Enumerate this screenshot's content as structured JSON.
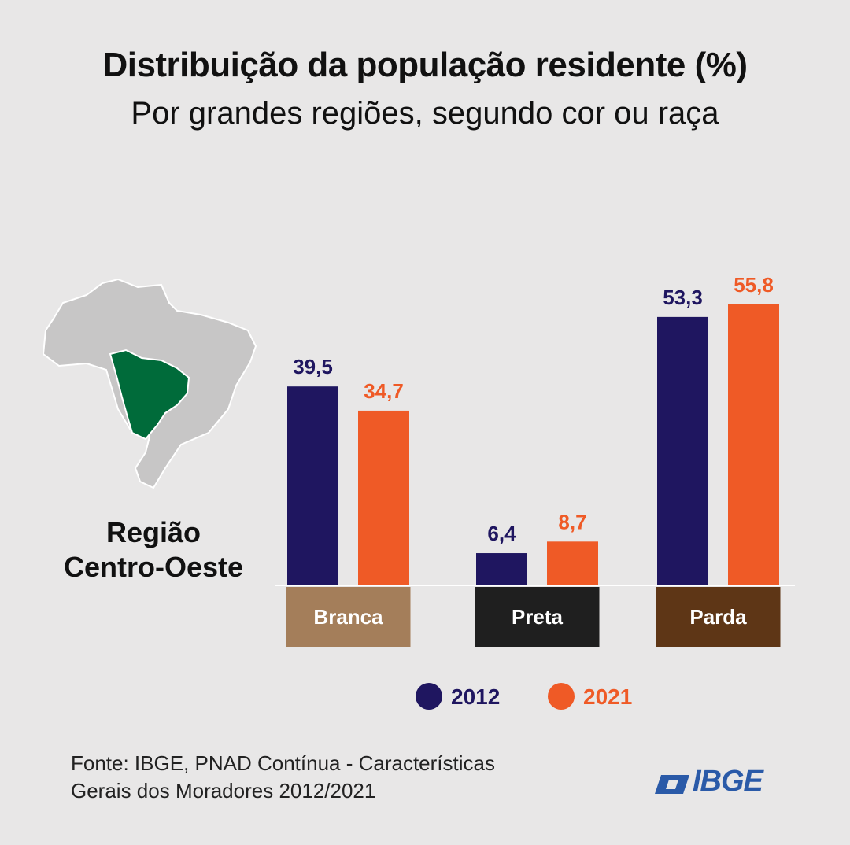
{
  "title": "Distribuição da população residente (%)",
  "subtitle": "Por grandes regiões, segundo cor ou raça",
  "region": {
    "line1": "Região",
    "line2": "Centro-Oeste",
    "highlight_color": "#006b3a",
    "map_color": "#c7c6c6"
  },
  "source": {
    "line1": "Fonte: IBGE, PNAD Contínua - Características",
    "line2": "Gerais dos Moradores 2012/2021"
  },
  "logo": {
    "text": "IBGE",
    "color": "#2a5aa8"
  },
  "chart_data": {
    "type": "bar",
    "categories": [
      "Branca",
      "Preta",
      "Parda"
    ],
    "category_colors": [
      "#a47e5a",
      "#1f1f1f",
      "#5e3616"
    ],
    "series": [
      {
        "name": "2012",
        "color": "#1f1660",
        "values": [
          39.5,
          6.4,
          53.3
        ],
        "labels": [
          "39,5",
          "6,4",
          "53,3"
        ]
      },
      {
        "name": "2021",
        "color": "#ef5a26",
        "values": [
          34.7,
          8.7,
          55.8
        ],
        "labels": [
          "34,7",
          "8,7",
          "55,8"
        ]
      }
    ],
    "ylim": [
      0,
      60
    ],
    "legend": "bottom"
  }
}
